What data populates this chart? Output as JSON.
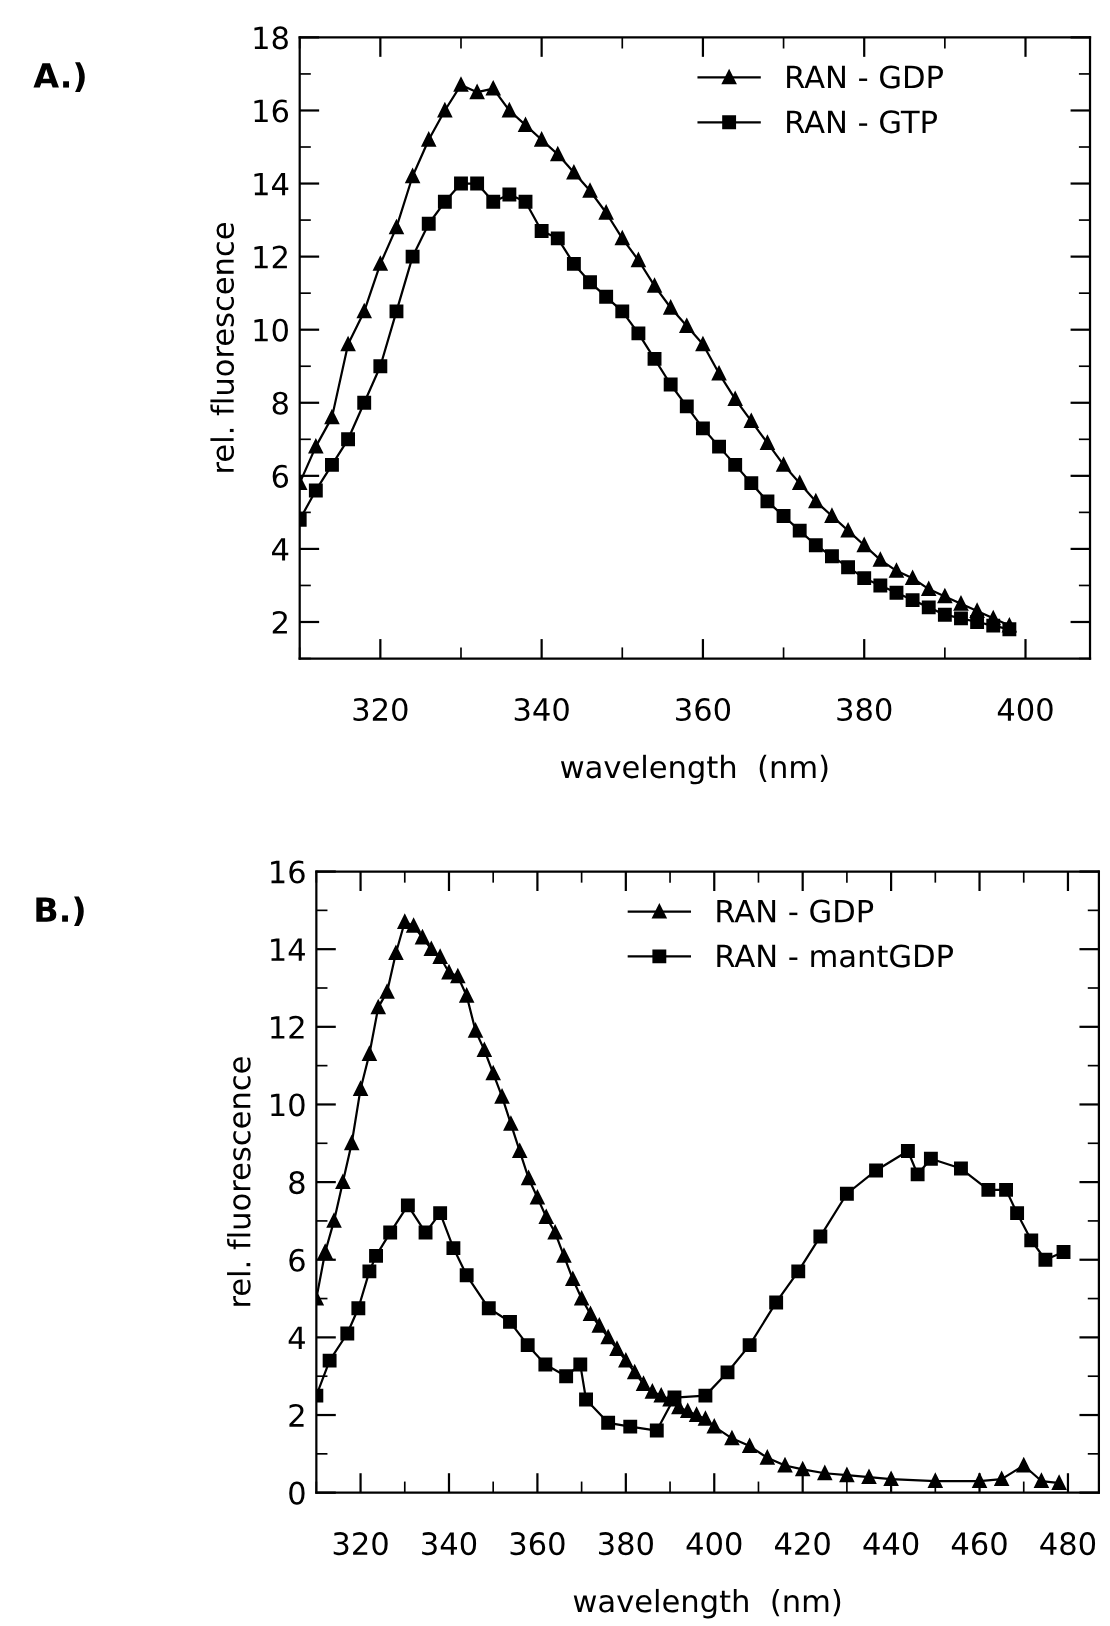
{
  "chart_data": [
    {
      "type": "line",
      "title": "A.)",
      "xlabel": "wavelength  (nm)",
      "ylabel": "rel. fluorescence",
      "xlim": [
        310,
        408
      ],
      "ylim": [
        1,
        18
      ],
      "xticks": [
        320,
        340,
        360,
        380,
        400
      ],
      "yticks": [
        2,
        4,
        6,
        8,
        10,
        12,
        14,
        16,
        18
      ],
      "legend": "top right",
      "grid": false,
      "x": [
        310,
        312,
        314,
        316,
        318,
        320,
        322,
        324,
        326,
        328,
        330,
        332,
        334,
        336,
        338,
        340,
        342,
        344,
        346,
        348,
        350,
        352,
        354,
        356,
        358,
        360,
        362,
        364,
        366,
        368,
        370,
        372,
        374,
        376,
        378,
        380,
        382,
        384,
        386,
        388,
        390,
        392,
        394,
        396,
        398
      ],
      "series": [
        {
          "name": "RAN - GDP",
          "color": "#000000",
          "marker": "triangle",
          "values": [
            5.8,
            6.8,
            7.6,
            9.6,
            10.5,
            11.8,
            12.8,
            14.2,
            15.2,
            16.0,
            16.7,
            16.5,
            16.6,
            16.0,
            15.6,
            15.2,
            14.8,
            14.3,
            13.8,
            13.2,
            12.5,
            11.9,
            11.2,
            10.6,
            10.1,
            9.6,
            8.8,
            8.1,
            7.5,
            6.9,
            6.3,
            5.8,
            5.3,
            4.9,
            4.5,
            4.1,
            3.7,
            3.4,
            3.2,
            2.9,
            2.7,
            2.5,
            2.3,
            2.1,
            1.9
          ]
        },
        {
          "name": "RAN - GTP",
          "color": "#000000",
          "marker": "square",
          "values": [
            4.8,
            5.6,
            6.3,
            7.0,
            8.0,
            9.0,
            10.5,
            12.0,
            12.9,
            13.5,
            14.0,
            14.0,
            13.5,
            13.7,
            13.5,
            12.7,
            12.5,
            11.8,
            11.3,
            10.9,
            10.5,
            9.9,
            9.2,
            8.5,
            7.9,
            7.3,
            6.8,
            6.3,
            5.8,
            5.3,
            4.9,
            4.5,
            4.1,
            3.8,
            3.5,
            3.2,
            3.0,
            2.8,
            2.6,
            2.4,
            2.2,
            2.1,
            2.0,
            1.9,
            1.8
          ]
        }
      ]
    },
    {
      "type": "line",
      "title": "B.)",
      "xlabel": "wavelength  (nm)",
      "ylabel": "rel. fluorescence",
      "xlim": [
        310,
        487
      ],
      "ylim": [
        0,
        16
      ],
      "xticks": [
        320,
        340,
        360,
        380,
        400,
        420,
        440,
        460,
        480
      ],
      "yticks": [
        0,
        2,
        4,
        6,
        8,
        10,
        12,
        14,
        16
      ],
      "legend": "top right",
      "grid": false,
      "series": [
        {
          "name": "RAN - GDP",
          "color": "#000000",
          "marker": "triangle",
          "x": [
            310,
            312,
            314,
            316,
            318,
            320,
            322,
            324,
            326,
            328,
            330,
            332,
            334,
            336,
            338,
            340,
            342,
            344,
            346,
            348,
            350,
            352,
            354,
            356,
            358,
            360,
            362,
            364,
            366,
            368,
            370,
            372,
            374,
            376,
            378,
            380,
            382,
            384,
            386,
            388,
            390,
            392,
            394,
            396,
            398,
            400,
            404,
            408,
            412,
            416,
            420,
            425,
            430,
            435,
            440,
            450,
            460,
            465,
            470,
            474,
            478
          ],
          "values": [
            5.0,
            6.2,
            7.0,
            8.0,
            9.0,
            10.4,
            11.3,
            12.5,
            12.9,
            13.9,
            14.7,
            14.6,
            14.3,
            14.0,
            13.8,
            13.4,
            13.3,
            12.8,
            11.9,
            11.4,
            10.8,
            10.2,
            9.5,
            8.8,
            8.1,
            7.6,
            7.1,
            6.7,
            6.1,
            5.5,
            5.0,
            4.6,
            4.3,
            4.0,
            3.7,
            3.4,
            3.1,
            2.8,
            2.6,
            2.5,
            2.4,
            2.2,
            2.1,
            2.0,
            1.9,
            1.7,
            1.4,
            1.2,
            0.9,
            0.7,
            0.6,
            0.5,
            0.45,
            0.4,
            0.35,
            0.3,
            0.3,
            0.35,
            0.7,
            0.3,
            0.25
          ]
        },
        {
          "name": "RAN - mantGDP",
          "color": "#000000",
          "marker": "square",
          "x": [
            310,
            313,
            317,
            319.5,
            322,
            323.5,
            326.7,
            330.7,
            334.7,
            338,
            341,
            344,
            349,
            353.8,
            357.8,
            361.8,
            366.5,
            369.7,
            371,
            376,
            381,
            387,
            391,
            398,
            403,
            408,
            414,
            419,
            424,
            430,
            436.6,
            443.8,
            446,
            449,
            455.8,
            462,
            466,
            468.5,
            471.7,
            474.9,
            479
          ],
          "values": [
            2.5,
            3.4,
            4.1,
            4.75,
            5.7,
            6.1,
            6.7,
            7.4,
            6.7,
            7.2,
            6.3,
            5.6,
            4.75,
            4.4,
            3.8,
            3.3,
            3.0,
            3.3,
            2.4,
            1.8,
            1.7,
            1.6,
            2.45,
            2.5,
            3.1,
            3.8,
            4.9,
            5.7,
            6.6,
            7.7,
            8.3,
            8.8,
            8.2,
            8.6,
            8.35,
            7.8,
            7.8,
            7.2,
            6.5,
            6.0,
            6.2
          ]
        }
      ]
    }
  ]
}
